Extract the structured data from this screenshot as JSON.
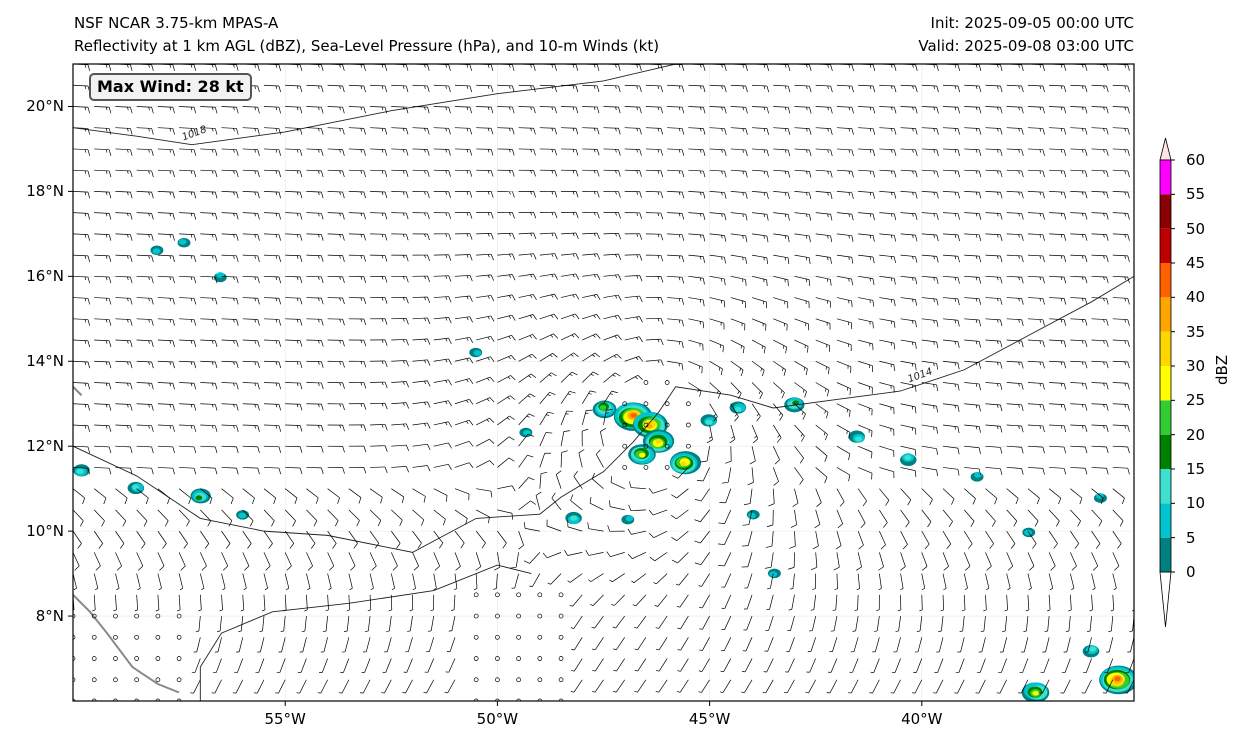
{
  "titles": {
    "left_line1": "NSF NCAR 3.75-km MPAS-A",
    "left_line2": "Reflectivity at 1 km AGL (dBZ), Sea-Level Pressure (hPa), and 10-m Winds (kt)",
    "right_line1": "Init: 2025-09-05 00:00 UTC",
    "right_line2": "Valid: 2025-09-08 03:00 UTC"
  },
  "annotation": {
    "max_wind": "Max Wind: 28 kt"
  },
  "axes": {
    "lon_range": [
      -60,
      -35
    ],
    "lat_range": [
      6,
      21
    ],
    "lat_ticks": [
      {
        "value": 8,
        "label": "8°N"
      },
      {
        "value": 10,
        "label": "10°N"
      },
      {
        "value": 12,
        "label": "12°N"
      },
      {
        "value": 14,
        "label": "14°N"
      },
      {
        "value": 16,
        "label": "16°N"
      },
      {
        "value": 18,
        "label": "18°N"
      },
      {
        "value": 20,
        "label": "20°N"
      }
    ],
    "lon_ticks": [
      {
        "value": -55,
        "label": "55°W"
      },
      {
        "value": -50,
        "label": "50°W"
      },
      {
        "value": -45,
        "label": "45°W"
      },
      {
        "value": -40,
        "label": "40°W"
      }
    ]
  },
  "isobars": [
    {
      "label": "1018",
      "label_lon": -57.4,
      "label_lat": 19.2,
      "points": [
        [
          -60,
          19.5
        ],
        [
          -58.5,
          19.3
        ],
        [
          -57.2,
          19.1
        ],
        [
          -55,
          19.4
        ],
        [
          -52.5,
          19.9
        ],
        [
          -50,
          20.3
        ],
        [
          -47.5,
          20.6
        ],
        [
          -45.8,
          21.0
        ]
      ]
    },
    {
      "label": "1014",
      "label_lon": -40.3,
      "label_lat": 13.5,
      "points": [
        [
          -60,
          12.0
        ],
        [
          -58.5,
          11.3
        ],
        [
          -57,
          10.3
        ],
        [
          -55.5,
          10.0
        ],
        [
          -54,
          9.9
        ],
        [
          -52,
          9.5
        ],
        [
          -50.5,
          10.3
        ],
        [
          -49,
          10.4
        ],
        [
          -48.5,
          10.8
        ],
        [
          -47.5,
          11.4
        ],
        [
          -46.8,
          12.1
        ],
        [
          -46.2,
          12.8
        ],
        [
          -45.8,
          13.4
        ],
        [
          -44.5,
          13.2
        ],
        [
          -43.5,
          12.9
        ],
        [
          -42,
          13.1
        ],
        [
          -40.5,
          13.3
        ],
        [
          -39,
          13.8
        ],
        [
          -37.5,
          14.6
        ],
        [
          -36,
          15.4
        ],
        [
          -35,
          16.0
        ]
      ]
    },
    {
      "label": "",
      "label_lon": 0,
      "label_lat": 0,
      "points": [
        [
          -57,
          6
        ],
        [
          -57,
          6.8
        ],
        [
          -56.5,
          7.6
        ],
        [
          -55.3,
          8.1
        ],
        [
          -53.5,
          8.3
        ],
        [
          -51.5,
          8.6
        ],
        [
          -50,
          9.2
        ],
        [
          -49.2,
          9.0
        ]
      ]
    }
  ],
  "coastline": {
    "south_america": [
      [
        -60,
        8.5
      ],
      [
        -59.6,
        8.1
      ],
      [
        -59.2,
        7.6
      ],
      [
        -58.9,
        7.2
      ],
      [
        -58.6,
        6.8
      ],
      [
        -58.3,
        6.6
      ],
      [
        -58.0,
        6.4
      ],
      [
        -57.5,
        6.2
      ]
    ],
    "tobago": [
      [
        -60,
        13.4
      ],
      [
        -59.8,
        13.2
      ]
    ]
  },
  "reflectivity_cells": [
    {
      "lon": -46.8,
      "lat": 12.7,
      "dbz": 40
    },
    {
      "lon": -46.4,
      "lat": 12.5,
      "dbz": 35
    },
    {
      "lon": -46.2,
      "lat": 12.1,
      "dbz": 30
    },
    {
      "lon": -46.6,
      "lat": 11.8,
      "dbz": 25
    },
    {
      "lon": -45.6,
      "lat": 11.6,
      "dbz": 30
    },
    {
      "lon": -47.5,
      "lat": 12.9,
      "dbz": 20
    },
    {
      "lon": -45.0,
      "lat": 12.6,
      "dbz": 10
    },
    {
      "lon": -44.3,
      "lat": 12.9,
      "dbz": 10
    },
    {
      "lon": -43.0,
      "lat": 13.0,
      "dbz": 15
    },
    {
      "lon": -41.5,
      "lat": 12.2,
      "dbz": 10
    },
    {
      "lon": -40.3,
      "lat": 11.7,
      "dbz": 10
    },
    {
      "lon": -38.7,
      "lat": 11.3,
      "dbz": 5
    },
    {
      "lon": -59.8,
      "lat": 11.4,
      "dbz": 10
    },
    {
      "lon": -58.5,
      "lat": 11.0,
      "dbz": 10
    },
    {
      "lon": -57.0,
      "lat": 10.8,
      "dbz": 15
    },
    {
      "lon": -56.0,
      "lat": 10.4,
      "dbz": 5
    },
    {
      "lon": -57.4,
      "lat": 16.8,
      "dbz": 5
    },
    {
      "lon": -56.5,
      "lat": 16.0,
      "dbz": 5
    },
    {
      "lon": -58.0,
      "lat": 16.6,
      "dbz": 5
    },
    {
      "lon": -48.2,
      "lat": 10.3,
      "dbz": 10
    },
    {
      "lon": -46.9,
      "lat": 10.3,
      "dbz": 5
    },
    {
      "lon": -44.0,
      "lat": 10.4,
      "dbz": 5
    },
    {
      "lon": -43.5,
      "lat": 9.0,
      "dbz": 5
    },
    {
      "lon": -37.5,
      "lat": 10.0,
      "dbz": 5
    },
    {
      "lon": -35.8,
      "lat": 10.8,
      "dbz": 5
    },
    {
      "lon": -35.4,
      "lat": 6.5,
      "dbz": 40
    },
    {
      "lon": -37.3,
      "lat": 6.2,
      "dbz": 25
    },
    {
      "lon": -36.0,
      "lat": 7.2,
      "dbz": 10
    },
    {
      "lon": -50.5,
      "lat": 14.2,
      "dbz": 5
    },
    {
      "lon": -49.3,
      "lat": 12.3,
      "dbz": 5
    }
  ],
  "colorbar": {
    "label": "dBZ",
    "levels": [
      0,
      5,
      10,
      15,
      20,
      25,
      30,
      35,
      40,
      45,
      50,
      55,
      60
    ],
    "colors": [
      "#008080",
      "#00c5d0",
      "#40e0d0",
      "#008000",
      "#32cd32",
      "#ffff00",
      "#ffd700",
      "#ffa500",
      "#ff6000",
      "#c00000",
      "#8b0000",
      "#ff00ff",
      "#ffe4e1"
    ],
    "tick_labels": [
      "0",
      "5",
      "10",
      "15",
      "20",
      "25",
      "30",
      "35",
      "40",
      "45",
      "50",
      "55",
      "60"
    ]
  }
}
